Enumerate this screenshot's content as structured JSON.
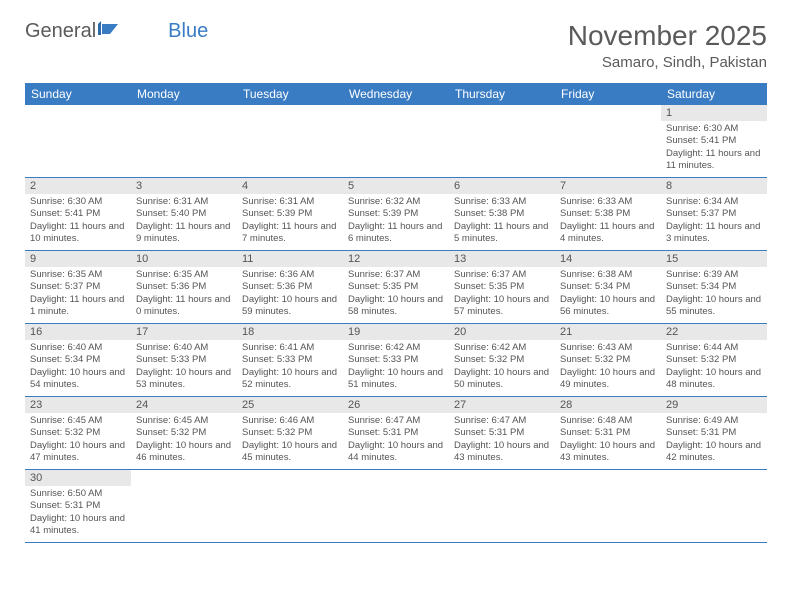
{
  "logo": {
    "text1": "General",
    "text2": "Blue"
  },
  "title": "November 2025",
  "location": "Samaro, Sindh, Pakistan",
  "colors": {
    "header_bg": "#3a7cc4",
    "header_text": "#ffffff",
    "daynum_bg": "#e8e8e8",
    "text": "#555555",
    "border": "#3a7cc4"
  },
  "weekdays": [
    "Sunday",
    "Monday",
    "Tuesday",
    "Wednesday",
    "Thursday",
    "Friday",
    "Saturday"
  ],
  "grid": [
    [
      null,
      null,
      null,
      null,
      null,
      null,
      {
        "n": "1",
        "sr": "6:30 AM",
        "ss": "5:41 PM",
        "dl": "11 hours and 11 minutes."
      }
    ],
    [
      {
        "n": "2",
        "sr": "6:30 AM",
        "ss": "5:41 PM",
        "dl": "11 hours and 10 minutes."
      },
      {
        "n": "3",
        "sr": "6:31 AM",
        "ss": "5:40 PM",
        "dl": "11 hours and 9 minutes."
      },
      {
        "n": "4",
        "sr": "6:31 AM",
        "ss": "5:39 PM",
        "dl": "11 hours and 7 minutes."
      },
      {
        "n": "5",
        "sr": "6:32 AM",
        "ss": "5:39 PM",
        "dl": "11 hours and 6 minutes."
      },
      {
        "n": "6",
        "sr": "6:33 AM",
        "ss": "5:38 PM",
        "dl": "11 hours and 5 minutes."
      },
      {
        "n": "7",
        "sr": "6:33 AM",
        "ss": "5:38 PM",
        "dl": "11 hours and 4 minutes."
      },
      {
        "n": "8",
        "sr": "6:34 AM",
        "ss": "5:37 PM",
        "dl": "11 hours and 3 minutes."
      }
    ],
    [
      {
        "n": "9",
        "sr": "6:35 AM",
        "ss": "5:37 PM",
        "dl": "11 hours and 1 minute."
      },
      {
        "n": "10",
        "sr": "6:35 AM",
        "ss": "5:36 PM",
        "dl": "11 hours and 0 minutes."
      },
      {
        "n": "11",
        "sr": "6:36 AM",
        "ss": "5:36 PM",
        "dl": "10 hours and 59 minutes."
      },
      {
        "n": "12",
        "sr": "6:37 AM",
        "ss": "5:35 PM",
        "dl": "10 hours and 58 minutes."
      },
      {
        "n": "13",
        "sr": "6:37 AM",
        "ss": "5:35 PM",
        "dl": "10 hours and 57 minutes."
      },
      {
        "n": "14",
        "sr": "6:38 AM",
        "ss": "5:34 PM",
        "dl": "10 hours and 56 minutes."
      },
      {
        "n": "15",
        "sr": "6:39 AM",
        "ss": "5:34 PM",
        "dl": "10 hours and 55 minutes."
      }
    ],
    [
      {
        "n": "16",
        "sr": "6:40 AM",
        "ss": "5:34 PM",
        "dl": "10 hours and 54 minutes."
      },
      {
        "n": "17",
        "sr": "6:40 AM",
        "ss": "5:33 PM",
        "dl": "10 hours and 53 minutes."
      },
      {
        "n": "18",
        "sr": "6:41 AM",
        "ss": "5:33 PM",
        "dl": "10 hours and 52 minutes."
      },
      {
        "n": "19",
        "sr": "6:42 AM",
        "ss": "5:33 PM",
        "dl": "10 hours and 51 minutes."
      },
      {
        "n": "20",
        "sr": "6:42 AM",
        "ss": "5:32 PM",
        "dl": "10 hours and 50 minutes."
      },
      {
        "n": "21",
        "sr": "6:43 AM",
        "ss": "5:32 PM",
        "dl": "10 hours and 49 minutes."
      },
      {
        "n": "22",
        "sr": "6:44 AM",
        "ss": "5:32 PM",
        "dl": "10 hours and 48 minutes."
      }
    ],
    [
      {
        "n": "23",
        "sr": "6:45 AM",
        "ss": "5:32 PM",
        "dl": "10 hours and 47 minutes."
      },
      {
        "n": "24",
        "sr": "6:45 AM",
        "ss": "5:32 PM",
        "dl": "10 hours and 46 minutes."
      },
      {
        "n": "25",
        "sr": "6:46 AM",
        "ss": "5:32 PM",
        "dl": "10 hours and 45 minutes."
      },
      {
        "n": "26",
        "sr": "6:47 AM",
        "ss": "5:31 PM",
        "dl": "10 hours and 44 minutes."
      },
      {
        "n": "27",
        "sr": "6:47 AM",
        "ss": "5:31 PM",
        "dl": "10 hours and 43 minutes."
      },
      {
        "n": "28",
        "sr": "6:48 AM",
        "ss": "5:31 PM",
        "dl": "10 hours and 43 minutes."
      },
      {
        "n": "29",
        "sr": "6:49 AM",
        "ss": "5:31 PM",
        "dl": "10 hours and 42 minutes."
      }
    ],
    [
      {
        "n": "30",
        "sr": "6:50 AM",
        "ss": "5:31 PM",
        "dl": "10 hours and 41 minutes."
      },
      null,
      null,
      null,
      null,
      null,
      null
    ]
  ],
  "labels": {
    "sunrise": "Sunrise:",
    "sunset": "Sunset:",
    "daylight": "Daylight:"
  }
}
